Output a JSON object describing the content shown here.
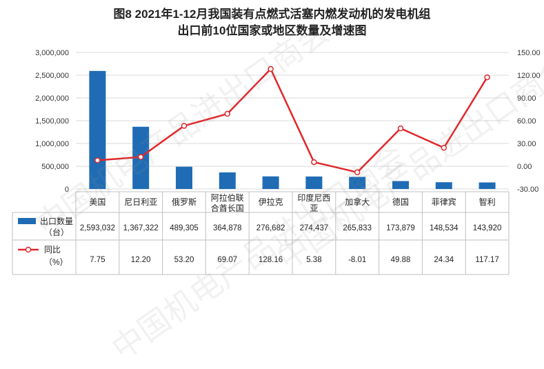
{
  "title_line1": "图8  2021年1-12月我国装有点燃式活塞内燃发动机的发电机组",
  "title_line2": "出口前10位国家或地区数量及增速图",
  "watermark": "中国机电产品进出口商会",
  "colors": {
    "bar": "#1f6cb5",
    "line": "#e0262a",
    "grid": "#d9d9d9"
  },
  "chart_data": {
    "type": "bar+line",
    "categories": [
      "美国",
      "尼日利亚",
      "俄罗斯",
      "阿拉伯联合酋长国",
      "伊拉克",
      "印度尼西亚",
      "加拿大",
      "德国",
      "菲律宾",
      "智利"
    ],
    "category_labels": [
      [
        "美国"
      ],
      [
        "尼日利亚"
      ],
      [
        "俄罗斯"
      ],
      [
        "阿拉伯联",
        "合酋长国"
      ],
      [
        "伊拉克"
      ],
      [
        "印度尼西",
        "亚"
      ],
      [
        "加拿大"
      ],
      [
        "德国"
      ],
      [
        "菲律宾"
      ],
      [
        "智利"
      ]
    ],
    "series": [
      {
        "name": "出口数量（台）",
        "legend_lines": [
          "出口数量",
          "（台）"
        ],
        "type": "bar",
        "axis": "left",
        "values": [
          2593032,
          1367322,
          489305,
          364878,
          276682,
          274437,
          265833,
          173879,
          148534,
          143920
        ],
        "labels": [
          "2,593,032",
          "1,367,322",
          "489,305",
          "364,878",
          "276,682",
          "274,437",
          "265,833",
          "173,879",
          "148,534",
          "143,920"
        ]
      },
      {
        "name": "同比（%）",
        "legend_lines": [
          "同比",
          "（%）"
        ],
        "type": "line",
        "axis": "right",
        "values": [
          7.75,
          12.2,
          53.2,
          69.07,
          128.16,
          5.38,
          -8.01,
          49.88,
          24.34,
          117.17
        ],
        "labels": [
          "7.75",
          "12.20",
          "53.20",
          "69.07",
          "128.16",
          "5.38",
          "-8.01",
          "49.88",
          "24.34",
          "117.17"
        ]
      }
    ],
    "y_left": {
      "min": 0,
      "max": 3000000,
      "ticks": [
        0,
        500000,
        1000000,
        1500000,
        2000000,
        2500000,
        3000000
      ],
      "tick_labels": [
        "0",
        "500,000",
        "1,000,000",
        "1,500,000",
        "2,000,000",
        "2,500,000",
        "3,000,000"
      ]
    },
    "y_right": {
      "min": -30,
      "max": 150,
      "ticks": [
        -30,
        0,
        30,
        60,
        90,
        120,
        150
      ],
      "tick_labels": [
        "-30.00",
        "0.00",
        "30.00",
        "60.00",
        "90.00",
        "120.00",
        "150.00"
      ]
    },
    "grid": true,
    "legend": "data-table"
  }
}
